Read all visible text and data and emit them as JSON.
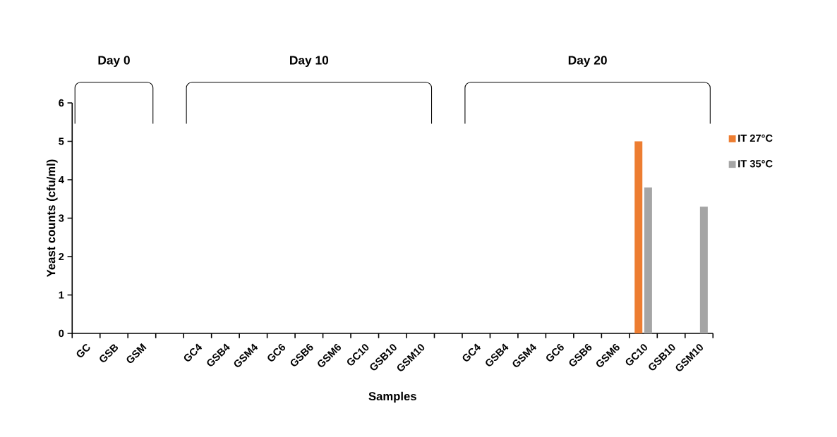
{
  "chart_data": {
    "type": "bar",
    "xlabel": "Samples",
    "ylabel": "Yeast counts  (cfu/ml)",
    "categories": [
      "GC",
      "GSB",
      "GSM",
      null,
      "GC4",
      "GSB4",
      "GSM4",
      "GC6",
      "GSB6",
      "GSM6",
      "GC10",
      "GSB10",
      "GSM10",
      null,
      "GC4",
      "GSB4",
      "GSM4",
      "GC6",
      "GSB6",
      "GSM6",
      "GC10",
      "GSB10",
      "GSM10"
    ],
    "series": [
      {
        "name": "IT 27°C",
        "color": "#ed7d31",
        "values": [
          0,
          0,
          0,
          null,
          0,
          0,
          0,
          0,
          0,
          0,
          0,
          0,
          0,
          null,
          0,
          0,
          0,
          0,
          0,
          0,
          5.0,
          0,
          0
        ]
      },
      {
        "name": "IT 35°C",
        "color": "#a5a5a5",
        "values": [
          0,
          0,
          0,
          null,
          0,
          0,
          0,
          0,
          0,
          0,
          0,
          0,
          0,
          null,
          0,
          0,
          0,
          0,
          0,
          0,
          3.8,
          0,
          3.3
        ]
      }
    ],
    "ylim": [
      0,
      6
    ],
    "yticks": [
      0,
      1,
      2,
      3,
      4,
      5,
      6
    ],
    "annotations": [
      "Day 0",
      "Day 10",
      "Day 20"
    ],
    "legend": "right",
    "grid": false
  }
}
